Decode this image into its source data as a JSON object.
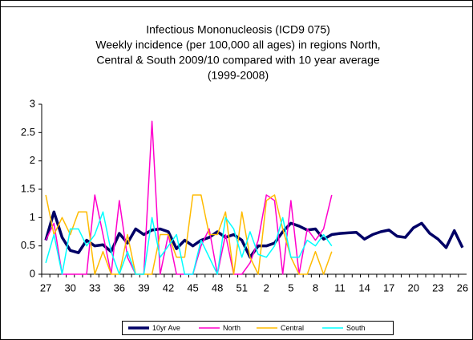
{
  "chart_data": {
    "type": "line",
    "title": [
      "Infectious Mononucleosis (ICD9 075)",
      "Weekly incidence (per 100,000 all ages) in regions North,",
      "Central & South 2009/10 compared with 10 year average",
      "(1999-2008)"
    ],
    "categories": [
      27,
      null,
      null,
      30,
      null,
      null,
      33,
      null,
      null,
      36,
      null,
      null,
      39,
      null,
      null,
      42,
      null,
      null,
      45,
      null,
      null,
      48,
      null,
      null,
      51,
      null,
      null,
      2,
      null,
      null,
      5,
      null,
      null,
      8,
      null,
      null,
      11,
      null,
      null,
      14,
      null,
      null,
      17,
      null,
      null,
      20,
      null,
      null,
      23,
      null,
      null,
      26
    ],
    "ylim": [
      0,
      3
    ],
    "yticks": [
      0,
      0.5,
      1,
      1.5,
      2,
      2.5,
      3
    ],
    "grid": false,
    "series": [
      {
        "name": "10yr Ave",
        "color": "#000066",
        "width": 3.5,
        "values": [
          0.6,
          1.1,
          0.65,
          0.42,
          0.38,
          0.6,
          0.5,
          0.52,
          0.4,
          0.72,
          0.55,
          0.8,
          0.7,
          0.78,
          0.8,
          0.75,
          0.45,
          0.6,
          0.5,
          0.6,
          0.65,
          0.75,
          0.65,
          0.7,
          0.6,
          0.3,
          0.5,
          0.5,
          0.55,
          0.75,
          0.9,
          0.85,
          0.78,
          0.8,
          0.62,
          0.7,
          0.72,
          0.73,
          0.74,
          0.62,
          0.7,
          0.75,
          0.78,
          0.67,
          0.65,
          0.82,
          0.9,
          0.72,
          0.62,
          0.47,
          0.77,
          0.47
        ]
      },
      {
        "name": "North",
        "color": "#ff00cc",
        "width": 1.5,
        "values": [
          0.6,
          0.9,
          0,
          0,
          0,
          0,
          1.4,
          0.7,
          0,
          1.3,
          0.3,
          0,
          0,
          2.7,
          0,
          0.7,
          0,
          0,
          0,
          0.5,
          0.8,
          0,
          0.7,
          0,
          0,
          0.2,
          0.6,
          1.4,
          1.3,
          0,
          1.3,
          0,
          0.8,
          0.6,
          0.8,
          1.4,
          null,
          null,
          null,
          null,
          null,
          null,
          null,
          null,
          null,
          null,
          null,
          null,
          null,
          null,
          null,
          null
        ]
      },
      {
        "name": "Central",
        "color": "#ffbb00",
        "width": 1.5,
        "values": [
          1.4,
          0.7,
          1.0,
          0.7,
          1.1,
          1.1,
          0,
          0.4,
          0,
          0,
          0.7,
          0,
          0,
          0,
          0.7,
          0.7,
          0.3,
          0.3,
          1.4,
          1.4,
          0.7,
          0.7,
          1.1,
          0,
          1.1,
          0.3,
          0,
          1.3,
          1.4,
          0.8,
          0.3,
          0,
          0,
          0.4,
          0,
          0.4,
          null,
          null,
          null,
          null,
          null,
          null,
          null,
          null,
          null,
          null,
          null,
          null,
          null,
          null,
          null,
          null
        ]
      },
      {
        "name": "South",
        "color": "#00ffff",
        "width": 1.5,
        "values": [
          0.2,
          0.7,
          0,
          0.8,
          0.8,
          0.5,
          0.7,
          1.1,
          0.4,
          0,
          0.4,
          0,
          0,
          1.0,
          0.3,
          0.5,
          0.7,
          0,
          0,
          0.6,
          0.3,
          0,
          1.0,
          0.8,
          0.3,
          0.75,
          0.35,
          0.3,
          0.5,
          1.0,
          0.3,
          0.3,
          0.6,
          0.5,
          0.7,
          0.5,
          null,
          null,
          null,
          null,
          null,
          null,
          null,
          null,
          null,
          null,
          null,
          null,
          null,
          null,
          null,
          null
        ]
      }
    ]
  }
}
